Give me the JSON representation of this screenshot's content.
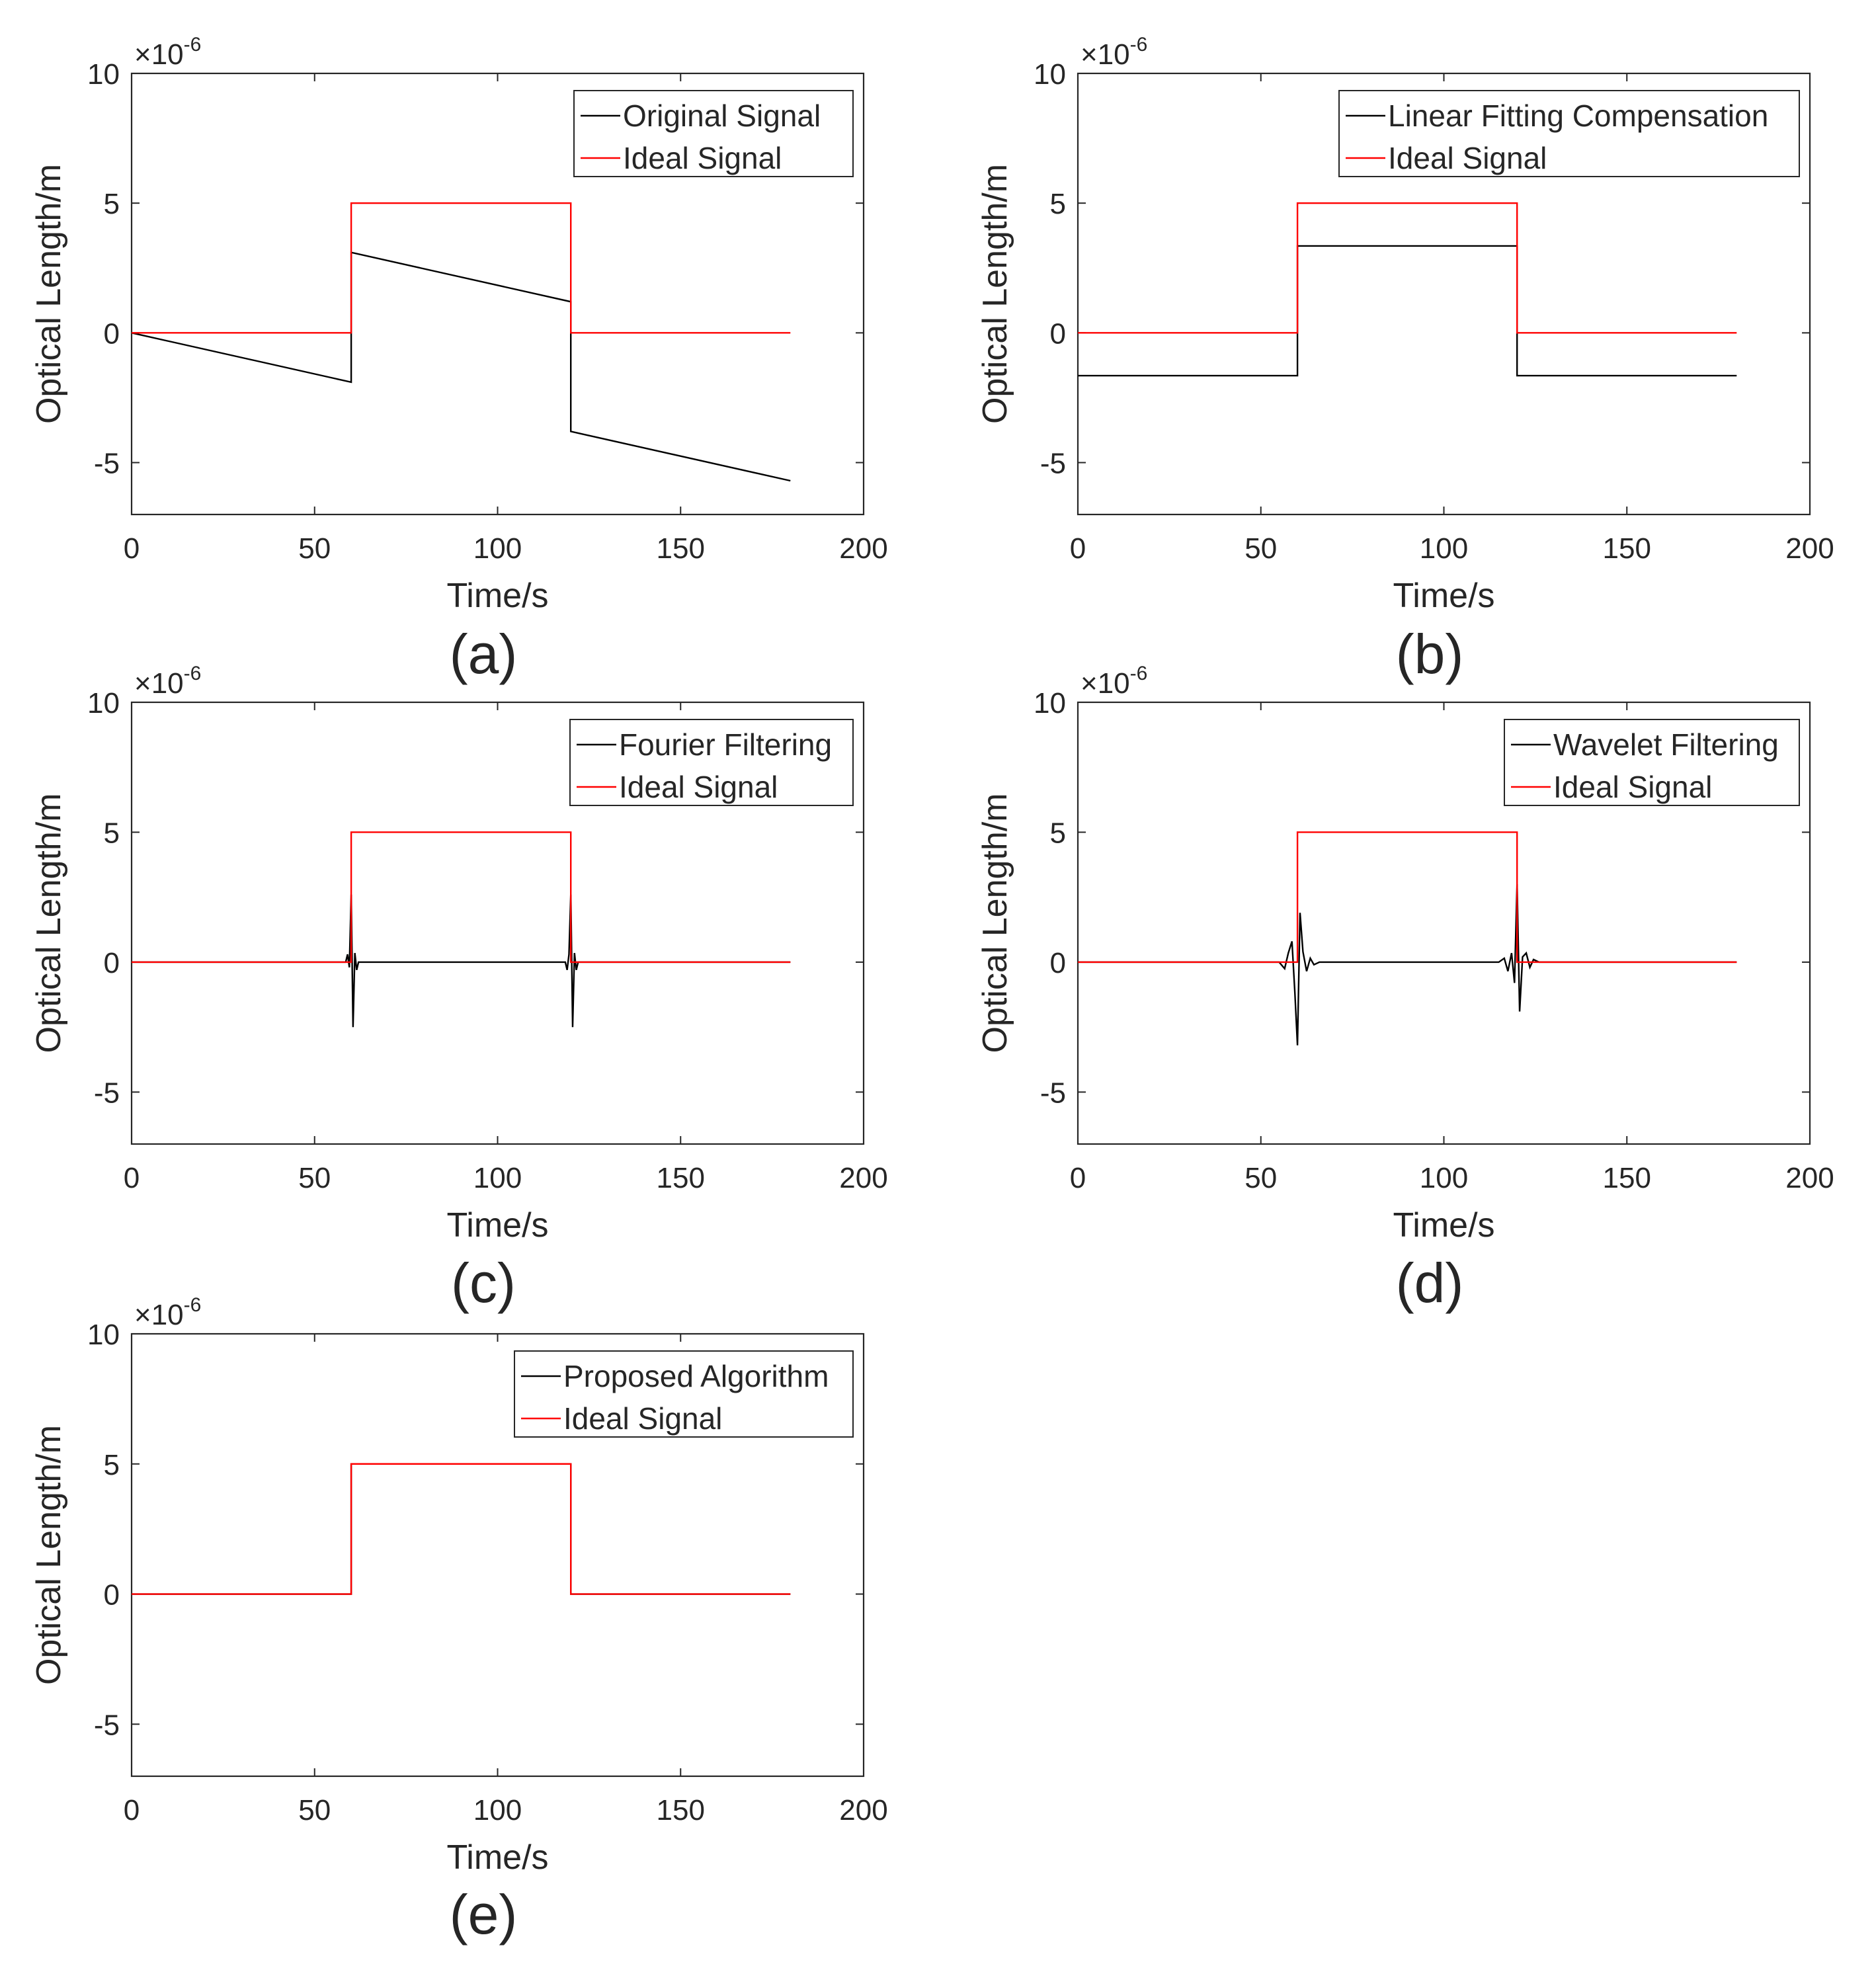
{
  "figure": {
    "panels": [
      {
        "id": "a",
        "caption": "(a)"
      },
      {
        "id": "b",
        "caption": "(b)"
      },
      {
        "id": "c",
        "caption": "(c)"
      },
      {
        "id": "d",
        "caption": "(d)"
      },
      {
        "id": "e",
        "caption": "(e)"
      }
    ]
  },
  "chart_data": [
    {
      "type": "line",
      "panel": "a",
      "caption": "(a)",
      "xlabel": "Time/s",
      "ylabel": "Optical Length/m",
      "xlim": [
        0,
        200
      ],
      "ylim": [
        -7,
        10
      ],
      "xticks": [
        0,
        50,
        100,
        150,
        200
      ],
      "yticks": [
        -5,
        0,
        5,
        10
      ],
      "xtick_labels": [
        "0",
        "50",
        "100",
        "150",
        "200"
      ],
      "ytick_labels": [
        "-5",
        "0",
        "5",
        "10"
      ],
      "y_exponent": "×10",
      "y_exponent_power": "-6",
      "legend_location": "top-right",
      "series": [
        {
          "name": "Original Signal",
          "color": "#000000",
          "x": [
            0,
            60,
            60,
            120,
            120,
            180
          ],
          "y": [
            0,
            -1.9,
            3.1,
            1.2,
            -3.8,
            -5.7
          ]
        },
        {
          "name": "Ideal Signal",
          "color": "#ff0000",
          "x": [
            0,
            60,
            60,
            120,
            120,
            180
          ],
          "y": [
            0,
            0,
            5,
            5,
            0,
            0
          ]
        }
      ]
    },
    {
      "type": "line",
      "panel": "b",
      "caption": "(b)",
      "xlabel": "Time/s",
      "ylabel": "Optical Length/m",
      "xlim": [
        0,
        200
      ],
      "ylim": [
        -7,
        10
      ],
      "xticks": [
        0,
        50,
        100,
        150,
        200
      ],
      "yticks": [
        -5,
        0,
        5,
        10
      ],
      "xtick_labels": [
        "0",
        "50",
        "100",
        "150",
        "200"
      ],
      "ytick_labels": [
        "-5",
        "0",
        "5",
        "10"
      ],
      "y_exponent": "×10",
      "y_exponent_power": "-6",
      "legend_location": "top-right",
      "series": [
        {
          "name": "Linear Fitting Compensation",
          "color": "#000000",
          "x": [
            0,
            60,
            60,
            120,
            120,
            180
          ],
          "y": [
            -1.65,
            -1.65,
            3.35,
            3.35,
            -1.65,
            -1.65
          ]
        },
        {
          "name": "Ideal Signal",
          "color": "#ff0000",
          "x": [
            0,
            60,
            60,
            120,
            120,
            180
          ],
          "y": [
            0,
            0,
            5,
            5,
            0,
            0
          ]
        }
      ]
    },
    {
      "type": "line",
      "panel": "c",
      "caption": "(c)",
      "xlabel": "Time/s",
      "ylabel": "Optical Length/m",
      "xlim": [
        0,
        200
      ],
      "ylim": [
        -7,
        10
      ],
      "xticks": [
        0,
        50,
        100,
        150,
        200
      ],
      "yticks": [
        -5,
        0,
        5,
        10
      ],
      "xtick_labels": [
        "0",
        "50",
        "100",
        "150",
        "200"
      ],
      "ytick_labels": [
        "-5",
        "0",
        "5",
        "10"
      ],
      "y_exponent": "×10",
      "y_exponent_power": "-6",
      "legend_location": "top-right",
      "series": [
        {
          "name": "Fourier Filtering",
          "color": "#000000",
          "x": [
            0,
            58.5,
            59.0,
            59.5,
            60.0,
            60.5,
            61.0,
            61.5,
            62.0,
            118.5,
            119.0,
            119.5,
            120.0,
            120.5,
            121.0,
            121.5,
            122.0,
            180
          ],
          "y": [
            0,
            0,
            0.3,
            -0.2,
            2.6,
            -2.5,
            0.35,
            -0.3,
            0,
            0,
            -0.3,
            0.3,
            2.6,
            -2.5,
            0.35,
            -0.3,
            0,
            0
          ]
        },
        {
          "name": "Ideal Signal",
          "color": "#ff0000",
          "x": [
            0,
            60,
            60,
            120,
            120,
            180
          ],
          "y": [
            0,
            0,
            5,
            5,
            0,
            0
          ]
        }
      ]
    },
    {
      "type": "line",
      "panel": "d",
      "caption": "(d)",
      "xlabel": "Time/s",
      "ylabel": "Optical Length/m",
      "xlim": [
        0,
        200
      ],
      "ylim": [
        -7,
        10
      ],
      "xticks": [
        0,
        50,
        100,
        150,
        200
      ],
      "yticks": [
        -5,
        0,
        5,
        10
      ],
      "xtick_labels": [
        "0",
        "50",
        "100",
        "150",
        "200"
      ],
      "ytick_labels": [
        "-5",
        "0",
        "5",
        "10"
      ],
      "y_exponent": "×10",
      "y_exponent_power": "-6",
      "legend_location": "top-right",
      "series": [
        {
          "name": "Wavelet Filtering",
          "color": "#000000",
          "x": [
            0,
            55,
            56.5,
            57.5,
            58.5,
            59.3,
            60.0,
            60.7,
            61.5,
            62.5,
            63.5,
            64.5,
            66,
            115,
            116.5,
            117.5,
            118.5,
            119.3,
            120.0,
            120.7,
            121.5,
            122.5,
            123.5,
            124.5,
            126,
            180
          ],
          "y": [
            0,
            0,
            -0.25,
            0.35,
            0.8,
            -1.2,
            -3.2,
            1.9,
            0.4,
            -0.35,
            0.15,
            -0.1,
            0,
            0,
            0.15,
            -0.35,
            0.35,
            -0.8,
            3.0,
            -1.9,
            0.2,
            0.35,
            -0.2,
            0.1,
            0,
            0
          ]
        },
        {
          "name": "Ideal Signal",
          "color": "#ff0000",
          "x": [
            0,
            60,
            60,
            120,
            120,
            180
          ],
          "y": [
            0,
            0,
            5,
            5,
            0,
            0
          ]
        }
      ]
    },
    {
      "type": "line",
      "panel": "e",
      "caption": "(e)",
      "xlabel": "Time/s",
      "ylabel": "Optical Length/m",
      "xlim": [
        0,
        200
      ],
      "ylim": [
        -7,
        10
      ],
      "xticks": [
        0,
        50,
        100,
        150,
        200
      ],
      "yticks": [
        -5,
        0,
        5,
        10
      ],
      "xtick_labels": [
        "0",
        "50",
        "100",
        "150",
        "200"
      ],
      "ytick_labels": [
        "-5",
        "0",
        "5",
        "10"
      ],
      "y_exponent": "×10",
      "y_exponent_power": "-6",
      "legend_location": "top-right",
      "series": [
        {
          "name": "Proposed Algorithm",
          "color": "#000000",
          "x": [
            0,
            60,
            60,
            120,
            120,
            180
          ],
          "y": [
            0,
            0,
            5,
            5,
            0,
            0
          ]
        },
        {
          "name": "Ideal Signal",
          "color": "#ff0000",
          "x": [
            0,
            60,
            60,
            120,
            120,
            180
          ],
          "y": [
            0,
            0,
            5,
            5,
            0,
            0
          ]
        }
      ]
    }
  ]
}
